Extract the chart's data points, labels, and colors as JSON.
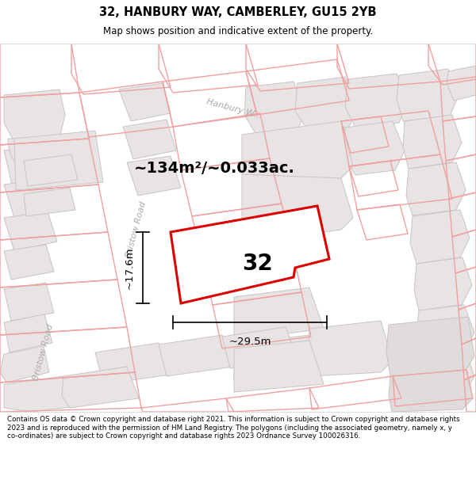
{
  "title": "32, HANBURY WAY, CAMBERLEY, GU15 2YB",
  "subtitle": "Map shows position and indicative extent of the property.",
  "footer": "Contains OS data © Crown copyright and database right 2021. This information is subject to Crown copyright and database rights 2023 and is reproduced with the permission of HM Land Registry. The polygons (including the associated geometry, namely x, y co-ordinates) are subject to Crown copyright and database rights 2023 Ordnance Survey 100026316.",
  "area_label": "~134m²/~0.033ac.",
  "width_label": "~29.5m",
  "height_label": "~17.6m",
  "number_label": "32",
  "map_bg": "#f7f4f4",
  "building_fill": "#e8e4e4",
  "building_edge": "#c8c4c4",
  "highlight_color": "#dd0000",
  "highlight_fill": "#ffffff",
  "pink": "#f0a0a0",
  "road_label_color": "#aaaaaa",
  "title_bg": "#ffffff",
  "footer_bg": "#ffffff",
  "dim_color": "#000000"
}
